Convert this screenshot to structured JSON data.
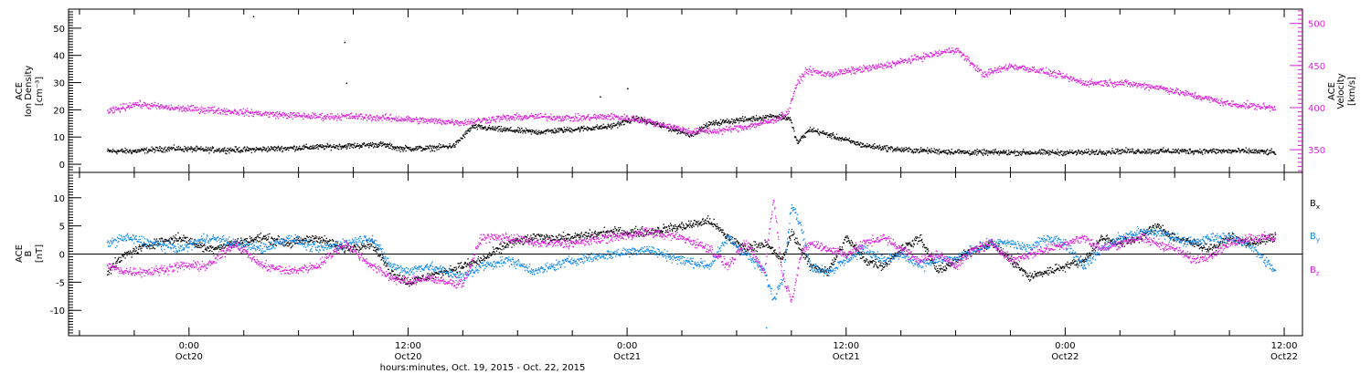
{
  "figure": {
    "xlabel": "hours:minutes, Oct. 19, 2015 - Oct. 22, 2015"
  },
  "colors": {
    "black": "#000000",
    "magenta": "#dd22dd",
    "blue": "#1188ee"
  },
  "chart_data": [
    {
      "type": "scatter",
      "panel": "top",
      "left_axis": {
        "label_lines": [
          "ACE",
          "Ion Density",
          "[cm⁻³]"
        ],
        "ylim": [
          -3,
          57
        ],
        "ticks": [
          0,
          10,
          20,
          30,
          40,
          50
        ],
        "tick_labels": [
          "0",
          "10",
          "20",
          "30",
          "40",
          "50"
        ]
      },
      "right_axis": {
        "label_lines": [
          "ACE",
          "Velocity",
          "[km/s]"
        ],
        "ylim": [
          323,
          517
        ],
        "ticks": [
          350,
          400,
          450,
          500
        ],
        "tick_labels": [
          "350",
          "400",
          "450",
          "500"
        ],
        "color": "#dd22dd"
      },
      "series": [
        {
          "key": "density",
          "axis": "left",
          "x_hours": [
            -4.5,
            -3,
            -1,
            1,
            3,
            5,
            7,
            9,
            10.5,
            11.5,
            13,
            14.5,
            15.5,
            17,
            19,
            21,
            23,
            24.5,
            26,
            27.5,
            28.5,
            29.5,
            31,
            32,
            32.9,
            33.3,
            34,
            35.5,
            37,
            39,
            41,
            43,
            45,
            47,
            49,
            51,
            53,
            55,
            56.5,
            58,
            59.5
          ],
          "values": [
            5,
            5,
            6,
            5.5,
            5.5,
            6,
            6.5,
            7,
            7.5,
            6,
            6,
            7,
            14,
            13,
            12,
            13,
            14,
            17,
            14,
            11,
            15,
            16,
            17,
            18,
            17,
            8,
            13,
            10,
            7,
            5.5,
            5,
            4.5,
            4.5,
            4.5,
            4.5,
            5,
            5,
            5,
            5,
            5,
            4.5
          ],
          "noise": 1.5
        },
        {
          "key": "velocity",
          "axis": "right",
          "x_hours": [
            -4.5,
            -3,
            -1,
            1,
            3,
            5,
            7,
            9,
            11,
            13,
            15,
            17,
            19,
            21,
            23,
            24.5,
            26,
            27.5,
            29,
            30.5,
            32,
            32.8,
            33.2,
            33.8,
            35,
            36.5,
            38,
            40,
            42,
            43.5,
            45,
            46.5,
            47.5,
            49,
            51,
            53,
            55,
            57,
            59.5
          ],
          "values": [
            395,
            405,
            400,
            398,
            395,
            392,
            390,
            390,
            388,
            385,
            383,
            388,
            390,
            388,
            390,
            387,
            380,
            372,
            373,
            378,
            385,
            395,
            425,
            445,
            440,
            445,
            450,
            460,
            470,
            440,
            450,
            445,
            440,
            430,
            430,
            425,
            415,
            405,
            400
          ],
          "noise": 6
        }
      ],
      "outliers": [
        {
          "x": 3.5,
          "y": 54.5
        },
        {
          "x": 8.5,
          "y": 45
        },
        {
          "x": 8.6,
          "y": 30
        },
        {
          "x": 22.5,
          "y": 25
        },
        {
          "x": 24,
          "y": 28
        }
      ]
    },
    {
      "type": "scatter",
      "panel": "bottom",
      "left_axis": {
        "label_lines": [
          "ACE",
          "B",
          "[nT]"
        ],
        "ylim": [
          -14.5,
          14.5
        ],
        "ticks": [
          -10,
          -5,
          0,
          5,
          10
        ],
        "tick_labels": [
          "-10",
          "-5",
          "0",
          "5",
          "10"
        ]
      },
      "legend": [
        "Bx",
        "By",
        "Bz"
      ],
      "legend_placement": "right",
      "series": [
        {
          "name": "Bx",
          "color": "#000000",
          "x_hours": [
            -4.5,
            -3.5,
            -2,
            -0.5,
            1,
            2.5,
            4,
            5.5,
            7,
            8.5,
            10,
            11,
            12,
            13,
            14,
            15,
            16,
            17.5,
            19,
            21,
            23,
            25,
            27,
            28.5,
            29.5,
            30.5,
            31.5,
            32.5,
            33,
            33.5,
            34,
            35,
            36,
            37,
            38,
            39,
            40,
            41,
            42,
            43,
            44,
            45,
            46,
            47,
            48,
            49,
            50,
            51,
            52,
            53,
            54,
            55,
            56,
            57,
            58,
            59.5
          ],
          "values": [
            -3,
            0,
            2,
            3,
            1,
            2,
            3,
            2,
            3,
            1,
            2,
            -3,
            -5,
            -4,
            -3,
            -2,
            -1,
            2,
            3,
            3,
            4,
            4,
            5,
            6,
            3,
            1,
            2,
            -1,
            4,
            1,
            -2,
            -3,
            3,
            -1,
            -2,
            1,
            3,
            -3,
            -1,
            1,
            2,
            -1,
            -4,
            -3,
            -2,
            -1,
            3,
            2,
            3,
            5,
            3,
            2,
            1,
            3,
            2,
            3
          ],
          "noise": 1.2
        },
        {
          "name": "By",
          "color": "#1188ee",
          "x_hours": [
            -4.5,
            -3.5,
            -2,
            -0.5,
            1,
            2.5,
            4,
            5.5,
            7,
            8.5,
            10,
            11,
            12,
            13,
            14,
            15,
            16,
            17.5,
            19,
            21,
            23,
            25,
            27,
            28.5,
            29.5,
            30.5,
            31.5,
            32,
            32.5,
            33,
            33.5,
            34,
            35,
            36,
            37,
            38,
            39,
            40,
            41,
            42,
            43,
            44,
            45,
            46,
            47,
            48,
            49,
            50,
            51,
            52,
            53,
            54,
            55,
            56,
            57,
            58,
            59.5
          ],
          "values": [
            2,
            3,
            2,
            1,
            3,
            2,
            1,
            3,
            1,
            2,
            3,
            -2,
            -3,
            -2,
            -3,
            -4,
            -2,
            -1,
            -3,
            -1,
            0,
            1,
            -1,
            -2,
            3,
            0,
            -3,
            -8,
            -4,
            9,
            5,
            -2,
            -3,
            -1,
            1,
            -1,
            0,
            -2,
            -1,
            -1,
            1,
            2,
            2,
            1,
            3,
            2,
            -2,
            1,
            3,
            4,
            4,
            3,
            2,
            3,
            3,
            2,
            -3
          ],
          "noise": 1.3
        },
        {
          "name": "Bz",
          "color": "#dd22dd",
          "x_hours": [
            -4.5,
            -3.5,
            -2,
            -0.5,
            1,
            2.5,
            4,
            5.5,
            7,
            8.5,
            10,
            11,
            12,
            13,
            14,
            15,
            16,
            17.5,
            19,
            21,
            23,
            25,
            27,
            28.5,
            29.5,
            30.5,
            31.5,
            32,
            32.5,
            33,
            33.5,
            34,
            35,
            36,
            37,
            38,
            39,
            40,
            41,
            42,
            43,
            44,
            45,
            46,
            47,
            48,
            49,
            50,
            51,
            52,
            53,
            54,
            55,
            56,
            57,
            58,
            59.5
          ],
          "values": [
            -2,
            -3,
            -3,
            -2,
            -2,
            2,
            -2,
            -3,
            -2,
            2,
            -2,
            -4,
            -5,
            -4,
            -5,
            -5,
            3,
            3,
            2,
            2,
            3,
            4,
            3,
            1,
            -2,
            2,
            -3,
            10,
            -4,
            -8,
            0,
            2,
            1,
            0,
            2,
            3,
            1,
            -1,
            0,
            -2,
            1,
            2,
            -1,
            0,
            1,
            2,
            3,
            1,
            2,
            3,
            2,
            1,
            -1,
            0,
            2,
            3,
            3
          ],
          "noise": 1.2
        }
      ],
      "outliers": [
        {
          "x": 31.6,
          "y": -13,
          "color": "#1188ee"
        }
      ]
    }
  ],
  "x_axis": {
    "xlim_hours": [
      -6.6,
      61
    ],
    "major_ticks": [
      0,
      12,
      24,
      36,
      48,
      60
    ],
    "tick_labels": [
      [
        "0:00",
        "Oct20"
      ],
      [
        "12:00",
        "Oct20"
      ],
      [
        "0:00",
        "Oct21"
      ],
      [
        "12:00",
        "Oct21"
      ],
      [
        "0:00",
        "Oct22"
      ],
      [
        "12:00",
        "Oct22"
      ]
    ]
  }
}
